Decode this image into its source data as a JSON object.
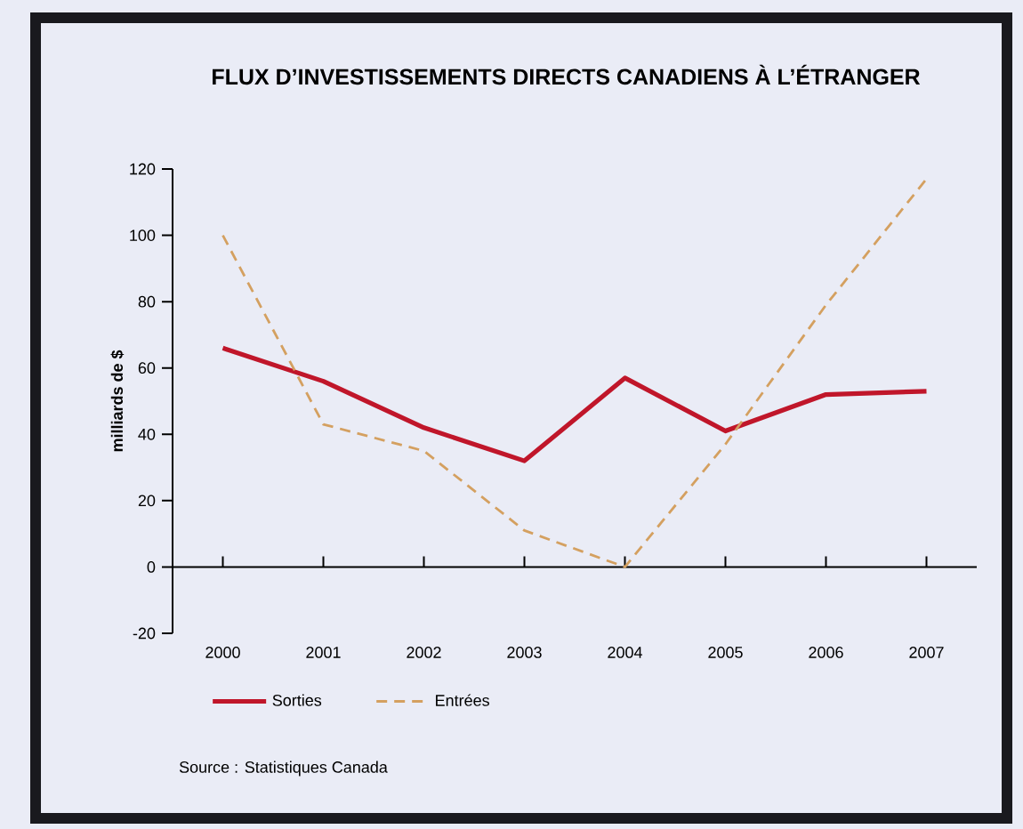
{
  "chart_data": {
    "type": "line",
    "title": "FLUX D’INVESTISSEMENTS DIRECTS CANADIENS À L’ÉTRANGER",
    "ylabel": "milliards de $",
    "categories": [
      "2000",
      "2001",
      "2002",
      "2003",
      "2004",
      "2005",
      "2006",
      "2007"
    ],
    "series": [
      {
        "name": "Sorties",
        "color": "#c0162a",
        "line_style": "solid",
        "values": [
          66,
          56,
          42,
          32,
          57,
          41,
          52,
          53
        ]
      },
      {
        "name": "Entrées",
        "color": "#d4a060",
        "line_style": "dashed",
        "values": [
          100,
          43,
          35,
          11,
          0,
          37,
          79,
          117
        ]
      }
    ],
    "ylim": [
      -20,
      120
    ],
    "yticks": [
      -20,
      0,
      20,
      40,
      60,
      80,
      100,
      120
    ],
    "legend": "bottom",
    "marker": "none",
    "annotations": [
      "Source : Statistiques Canada"
    ]
  }
}
